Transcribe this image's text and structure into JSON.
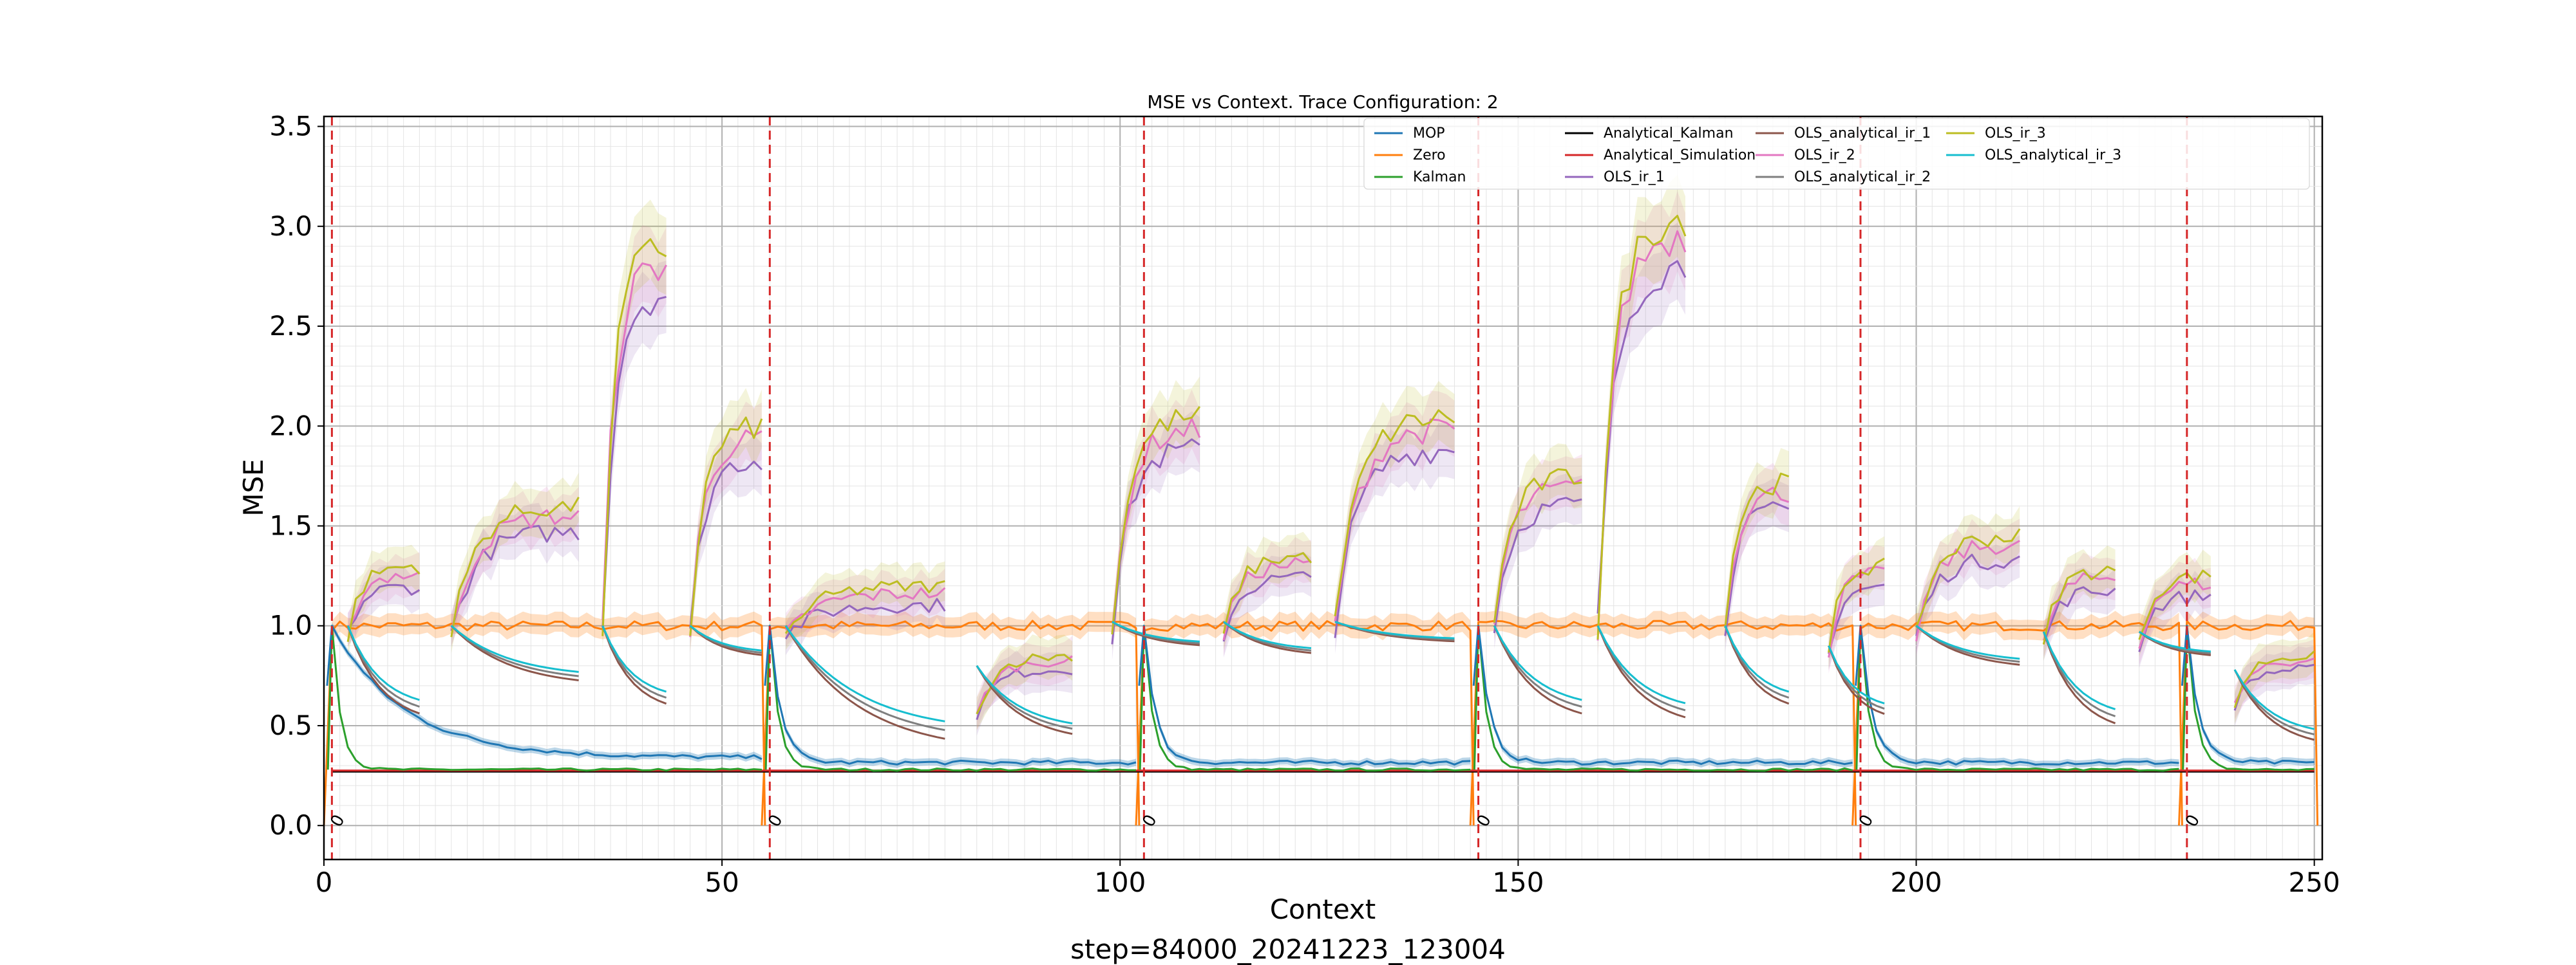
{
  "chart_data": {
    "type": "line",
    "title": "MSE vs Context. Trace Configuration: 2",
    "xlabel": "Context",
    "ylabel": "MSE",
    "footer": "step=84000_20241223_123004",
    "xlim": [
      0,
      251
    ],
    "ylim": [
      -0.17,
      3.55
    ],
    "xticks": [
      0,
      50,
      100,
      150,
      200,
      250
    ],
    "yticks": [
      0.0,
      0.5,
      1.0,
      1.5,
      2.0,
      2.5,
      3.0,
      3.5
    ],
    "grid": true,
    "legend_position": "top-right",
    "vlines": {
      "color": "#d62728",
      "x": [
        1,
        56,
        103,
        145,
        193,
        234
      ],
      "label": "0"
    },
    "segment_starts": [
      1,
      56,
      103,
      145,
      193,
      234
    ],
    "segment_ends": [
      55,
      102,
      144,
      192,
      233,
      250
    ],
    "series": [
      {
        "name": "MOP",
        "color": "#1f77b4",
        "type": "MOP",
        "params": {
          "peak": 1.0,
          "floor": 0.34,
          "floor_late": 0.315,
          "spike": 0.7
        }
      },
      {
        "name": "Zero",
        "color": "#ff7f0e",
        "type": "Zero",
        "params": {
          "level": 1.0,
          "band": 0.05
        }
      },
      {
        "name": "Kalman",
        "color": "#2ca02c",
        "type": "Kalman",
        "params": {
          "peak": 1.0,
          "floor": 0.28
        }
      },
      {
        "name": "Analytical_Kalman",
        "color": "#000000",
        "type": "Const",
        "params": {
          "level": 0.27
        }
      },
      {
        "name": "Analytical_Simulation",
        "color": "#d62728",
        "type": "Const",
        "params": {
          "level": 0.275
        }
      },
      {
        "name": "OLS_ir_1",
        "color": "#9467bd",
        "type": "OLS",
        "params": {
          "mult": 0.92
        }
      },
      {
        "name": "OLS_analytical_ir_1",
        "color": "#8c564b",
        "type": "OLSA",
        "params": {
          "mult": 0.78
        }
      },
      {
        "name": "OLS_ir_2",
        "color": "#e377c2",
        "type": "OLS",
        "params": {
          "mult": 0.97
        }
      },
      {
        "name": "OLS_analytical_ir_2",
        "color": "#7f7f7f",
        "type": "OLSA",
        "params": {
          "mult": 0.72
        }
      },
      {
        "name": "OLS_ir_3",
        "color": "#bcbd22",
        "type": "OLS",
        "params": {
          "mult": 1.0
        }
      },
      {
        "name": "OLS_analytical_ir_3",
        "color": "#17becf",
        "type": "OLSA",
        "params": {
          "mult": 0.66
        }
      }
    ],
    "ols_bursts": [
      {
        "start": 3,
        "end": 12,
        "peak": 1.3,
        "base": 0.95
      },
      {
        "start": 16,
        "end": 32,
        "peak": 1.6,
        "base": 0.95
      },
      {
        "start": 35,
        "end": 43,
        "peak": 2.9,
        "base": 1.0
      },
      {
        "start": 46,
        "end": 55,
        "peak": 2.0,
        "base": 0.95
      },
      {
        "start": 58,
        "end": 78,
        "peak": 1.2,
        "base": 0.95
      },
      {
        "start": 82,
        "end": 94,
        "peak": 0.85,
        "base": 0.55
      },
      {
        "start": 99,
        "end": 110,
        "peak": 2.05,
        "base": 0.95
      },
      {
        "start": 113,
        "end": 124,
        "peak": 1.35,
        "base": 0.95
      },
      {
        "start": 127,
        "end": 142,
        "peak": 2.05,
        "base": 1.0
      },
      {
        "start": 147,
        "end": 158,
        "peak": 1.75,
        "base": 1.0
      },
      {
        "start": 160,
        "end": 171,
        "peak": 3.05,
        "base": 1.0
      },
      {
        "start": 176,
        "end": 184,
        "peak": 1.72,
        "base": 1.0
      },
      {
        "start": 189,
        "end": 196,
        "peak": 1.3,
        "base": 0.85
      },
      {
        "start": 200,
        "end": 213,
        "peak": 1.45,
        "base": 0.95
      },
      {
        "start": 216,
        "end": 225,
        "peak": 1.28,
        "base": 0.9
      },
      {
        "start": 228,
        "end": 237,
        "peak": 1.25,
        "base": 0.9
      },
      {
        "start": 240,
        "end": 250,
        "peak": 0.85,
        "base": 0.6
      }
    ],
    "olsa_bursts": [
      {
        "start": 3,
        "end": 12,
        "peak": 1.0,
        "end_val": 0.55
      },
      {
        "start": 16,
        "end": 32,
        "peak": 1.0,
        "end_val": 0.72
      },
      {
        "start": 35,
        "end": 43,
        "peak": 1.0,
        "end_val": 0.6
      },
      {
        "start": 46,
        "end": 55,
        "peak": 1.0,
        "end_val": 0.85
      },
      {
        "start": 58,
        "end": 78,
        "peak": 1.0,
        "end_val": 0.42
      },
      {
        "start": 82,
        "end": 94,
        "peak": 0.8,
        "end_val": 0.45
      },
      {
        "start": 99,
        "end": 110,
        "peak": 1.02,
        "end_val": 0.9
      },
      {
        "start": 113,
        "end": 124,
        "peak": 1.02,
        "end_val": 0.86
      },
      {
        "start": 127,
        "end": 142,
        "peak": 1.02,
        "end_val": 0.92
      },
      {
        "start": 147,
        "end": 158,
        "peak": 1.0,
        "end_val": 0.55
      },
      {
        "start": 160,
        "end": 171,
        "peak": 1.0,
        "end_val": 0.53
      },
      {
        "start": 176,
        "end": 184,
        "peak": 1.0,
        "end_val": 0.6
      },
      {
        "start": 189,
        "end": 196,
        "peak": 0.9,
        "end_val": 0.55
      },
      {
        "start": 200,
        "end": 213,
        "peak": 1.0,
        "end_val": 0.8
      },
      {
        "start": 216,
        "end": 225,
        "peak": 0.97,
        "end_val": 0.5
      },
      {
        "start": 228,
        "end": 237,
        "peak": 0.97,
        "end_val": 0.85
      },
      {
        "start": 240,
        "end": 250,
        "peak": 0.78,
        "end_val": 0.42
      }
    ]
  }
}
